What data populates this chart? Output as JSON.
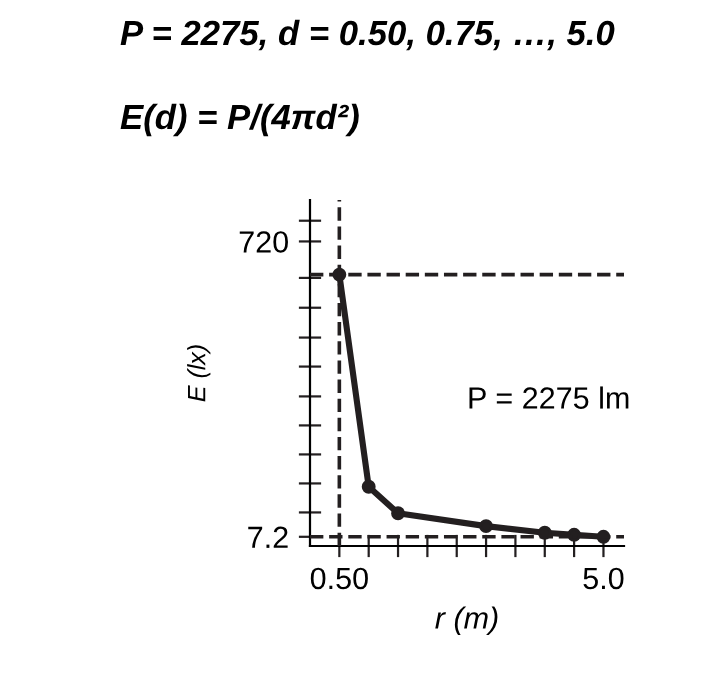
{
  "chart_data": {
    "type": "line",
    "title": "P = 2275, d = 0.50, 0.75, …, 5.0",
    "subtitle": "E(d) = P/(4πd²)",
    "xlabel": "r (m)",
    "ylabel": "E (lx)",
    "x": [
      0.5,
      1.0,
      1.5,
      3.0,
      4.0,
      4.5,
      5.0
    ],
    "series": [
      {
        "color": "#231f20",
        "values": [
          640,
          128,
          64,
          33,
          17,
          12,
          7.2
        ]
      }
    ],
    "xlim": [
      0.0,
      5.35
    ],
    "ylim": [
      -15,
      820
    ],
    "xticks": [
      {
        "value": 0.5,
        "label": "0.50"
      },
      {
        "value": 1.0,
        "label": null
      },
      {
        "value": 1.5,
        "label": null
      },
      {
        "value": 2.0,
        "label": null
      },
      {
        "value": 2.5,
        "label": null
      },
      {
        "value": 3.0,
        "label": null
      },
      {
        "value": 3.5,
        "label": null
      },
      {
        "value": 4.0,
        "label": null
      },
      {
        "value": 4.5,
        "label": null
      },
      {
        "value": 5.0,
        "label": "5.0"
      }
    ],
    "yticks": [
      {
        "value": 7.2,
        "label": "7.2"
      },
      {
        "value": 66,
        "label": null
      },
      {
        "value": 136,
        "label": null
      },
      {
        "value": 206,
        "label": null
      },
      {
        "value": 276,
        "label": null
      },
      {
        "value": 346,
        "label": null
      },
      {
        "value": 418,
        "label": null
      },
      {
        "value": 488,
        "label": null
      },
      {
        "value": 560,
        "label": null
      },
      {
        "value": 632,
        "label": null
      },
      {
        "value": 720,
        "label": "720"
      },
      {
        "value": 770,
        "label": null
      }
    ],
    "ref_lines": [
      {
        "axis": "y",
        "value": 640,
        "line_style": "dashed",
        "color": "#231f20"
      },
      {
        "axis": "x",
        "value": 0.5,
        "line_style": "dashed",
        "color": "#231f20"
      },
      {
        "axis": "y",
        "value": 7.2,
        "line_style": "dashed",
        "color": "#231f20"
      }
    ],
    "annotations": [
      "P = 2275 lm"
    ],
    "marker": "circle",
    "line_style": "solid",
    "grid": false,
    "legend": false
  }
}
